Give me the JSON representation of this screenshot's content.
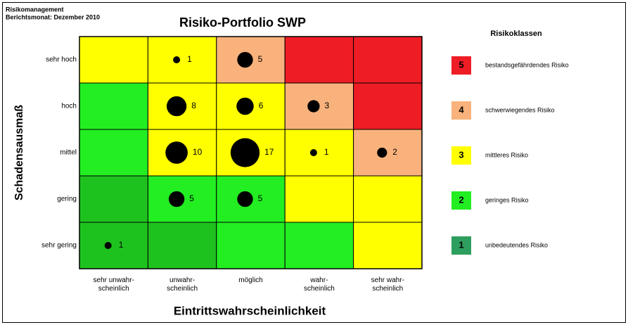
{
  "chart_data": {
    "type": "risk-matrix",
    "header": [
      "Risikomanagement",
      "Berichtsmonat: Dezember 2010"
    ],
    "title": "Risiko-Portfolio SWP",
    "y_label": "Schadensausmaß",
    "x_label": "Eintrittswahrscheinlichkeit",
    "y_categories": [
      "sehr hoch",
      "hoch",
      "mittel",
      "gering",
      "sehr gering"
    ],
    "x_categories": [
      [
        "sehr unwahr-",
        "scheinlich"
      ],
      [
        "unwahr-",
        "scheinlich"
      ],
      [
        "möglich"
      ],
      [
        "wahr-",
        "scheinlich"
      ],
      [
        "sehr wahr-",
        "scheinlich"
      ]
    ],
    "cell_colors": [
      [
        "#ffff00",
        "#ffff00",
        "#f9b27c",
        "#ee1c25",
        "#ee1c25"
      ],
      [
        "#22ee22",
        "#ffff00",
        "#ffff00",
        "#f9b27c",
        "#ee1c25"
      ],
      [
        "#22ee22",
        "#ffff00",
        "#ffff00",
        "#ffff00",
        "#f9b27c"
      ],
      [
        "#1ec21e",
        "#22ee22",
        "#22ee22",
        "#ffff00",
        "#ffff00"
      ],
      [
        "#1ec21e",
        "#1ec21e",
        "#22ee22",
        "#22ee22",
        "#ffff00"
      ]
    ],
    "counts": [
      [
        null,
        1,
        5,
        null,
        null
      ],
      [
        null,
        8,
        6,
        3,
        null
      ],
      [
        null,
        10,
        17,
        1,
        2
      ],
      [
        null,
        5,
        5,
        null,
        null
      ],
      [
        1,
        null,
        null,
        null,
        null
      ]
    ],
    "bubble_color": "#000000",
    "legend": {
      "title": "Risikoklassen",
      "items": [
        {
          "level": 5,
          "label": "bestandsgefährdendes Risiko",
          "color": "#ee1c25"
        },
        {
          "level": 4,
          "label": "schwerwiegendes Risiko",
          "color": "#f9b27c"
        },
        {
          "level": 3,
          "label": "mittleres Risiko",
          "color": "#ffff00"
        },
        {
          "level": 2,
          "label": "geringes Risiko",
          "color": "#22ee22"
        },
        {
          "level": 1,
          "label": "unbedeutendes Risiko",
          "color": "#2e9e5e"
        }
      ]
    }
  }
}
